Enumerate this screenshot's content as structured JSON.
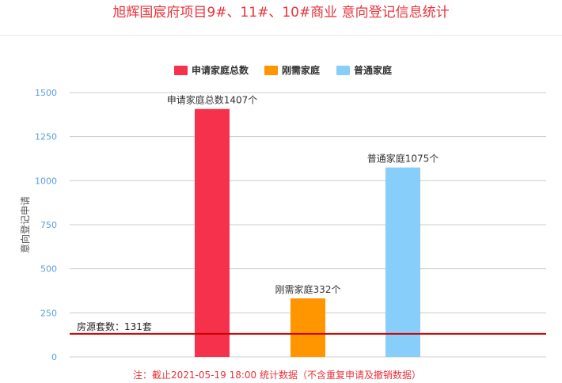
{
  "title": "旭辉国宸府项目9#、11#、10#商业 意向登记信息统计",
  "footnote": "注：截止2021-05-19 18:00 统计数据（不含重复申请及撤销数据）",
  "chart_data": {
    "type": "bar",
    "ylabel": "意向登记申请",
    "ylim": [
      0,
      1500
    ],
    "yticks": [
      0,
      250,
      500,
      750,
      1000,
      1250,
      1500
    ],
    "yticks_labels": [
      "0",
      "250",
      "500",
      "750",
      "1000",
      "1250",
      "1500"
    ],
    "grid": true,
    "legend_position": "top",
    "series": [
      {
        "name": "申请家庭总数",
        "value": 1407,
        "color": "#f5314b",
        "label": "申请家庭总数1407个"
      },
      {
        "name": "刚需家庭",
        "value": 332,
        "color": "#ff9600",
        "label": "刚需家庭332个"
      },
      {
        "name": "普通家庭",
        "value": 1075,
        "color": "#87cefa",
        "label": "普通家庭1075个"
      }
    ],
    "reference_line": {
      "value": 131,
      "label": "房源套数：131套",
      "color": "#cc0000"
    }
  }
}
